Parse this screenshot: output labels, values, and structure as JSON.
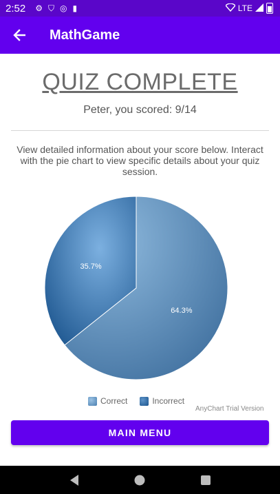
{
  "status_bar": {
    "time": "2:52",
    "network": "LTE",
    "icons": [
      "gear-icon",
      "shield-icon",
      "data-saver-icon",
      "sd-card-icon",
      "wifi-icon",
      "signal-icon",
      "battery-icon"
    ]
  },
  "app_bar": {
    "title": "MathGame",
    "back_icon": "arrow-back-icon",
    "color": "#6200ee"
  },
  "content": {
    "heading": "QUIZ COMPLETE",
    "score_text": "Peter, you scored: 9/14",
    "info_text": "View detailed information about your score below. Interact with the pie chart to view specific details about your quiz session."
  },
  "chart_data": {
    "type": "pie",
    "slices": [
      {
        "name": "Correct",
        "value": 64.3,
        "label": "64.3%",
        "color": "#4a7fb0"
      },
      {
        "name": "Incorrect",
        "value": 35.7,
        "label": "35.7%",
        "color": "#2e66a6"
      }
    ],
    "legend": [
      "Correct",
      "Incorrect"
    ],
    "legend_position": "bottom",
    "watermark": "AnyChart Trial Version"
  },
  "buttons": {
    "main_menu": "MAIN MENU"
  },
  "nav_bar": {
    "icons": [
      "back-triangle-icon",
      "home-circle-icon",
      "recents-square-icon"
    ]
  }
}
